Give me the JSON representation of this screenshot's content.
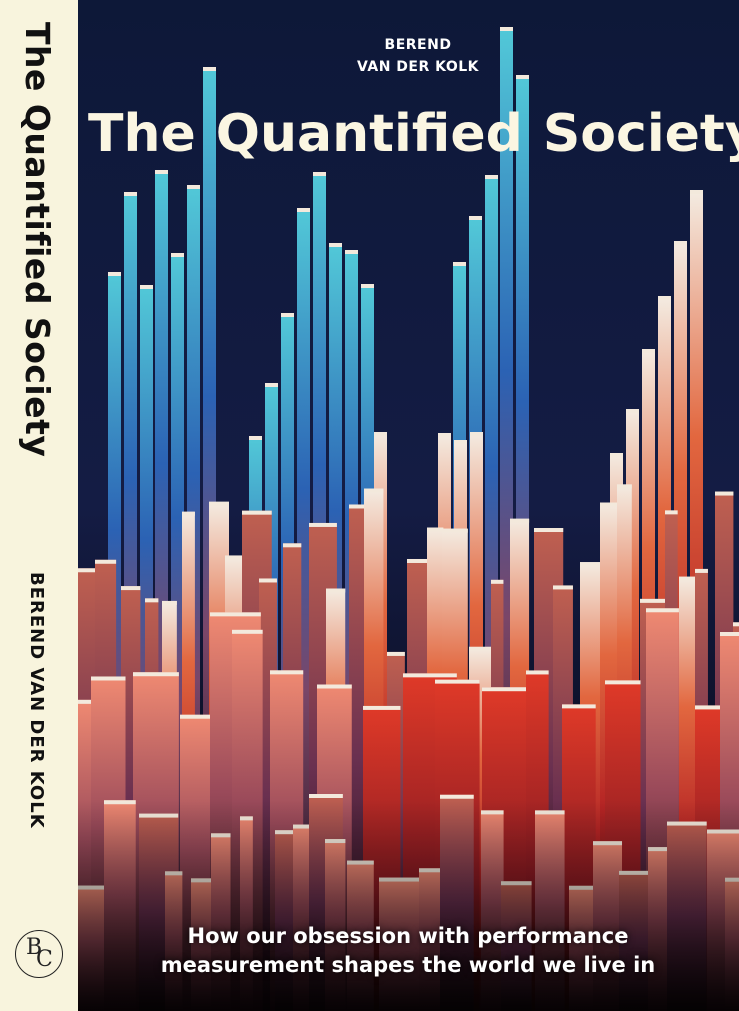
{
  "spine": {
    "title": "The Quantified Society",
    "author": "BEREND VAN DER KOLK",
    "publisher_logo": [
      "B",
      "C"
    ]
  },
  "cover": {
    "author": [
      "BEREND",
      "VAN DER KOLK"
    ],
    "title": [
      "The",
      "Quantified",
      "Society"
    ],
    "subtitle": [
      "How our obsession with performance",
      "measurement shapes the world we live in"
    ]
  }
}
